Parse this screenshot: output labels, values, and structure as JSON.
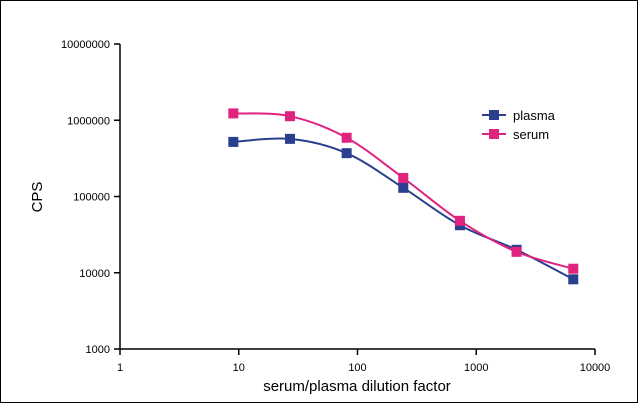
{
  "chart_data": {
    "type": "line",
    "title": "",
    "xlabel": "serum/plasma dilution factor",
    "ylabel": "CPS",
    "xscale": "log",
    "yscale": "log",
    "xlim": [
      1,
      10000
    ],
    "ylim": [
      1000,
      10000000
    ],
    "x_ticks": [
      1,
      10,
      100,
      1000,
      10000
    ],
    "x_tick_labels": [
      "1",
      "10",
      "100",
      "1000",
      "10000"
    ],
    "y_ticks": [
      1000,
      10000,
      100000,
      1000000,
      10000000
    ],
    "y_tick_labels": [
      "1000",
      "10000",
      "100000",
      "1000000",
      "10000000"
    ],
    "grid": false,
    "legend_position": "top-right",
    "x": [
      9,
      27,
      81,
      243,
      729,
      2187,
      6561
    ],
    "series": [
      {
        "name": "plasma",
        "color": "#2b3f8f",
        "marker": "square",
        "values": [
          520000,
          570000,
          370000,
          130000,
          42000,
          20000,
          8200
        ]
      },
      {
        "name": "serum",
        "color": "#e0237f",
        "marker": "square",
        "values": [
          1230000,
          1130000,
          590000,
          175000,
          48000,
          18800,
          11300
        ]
      }
    ]
  }
}
